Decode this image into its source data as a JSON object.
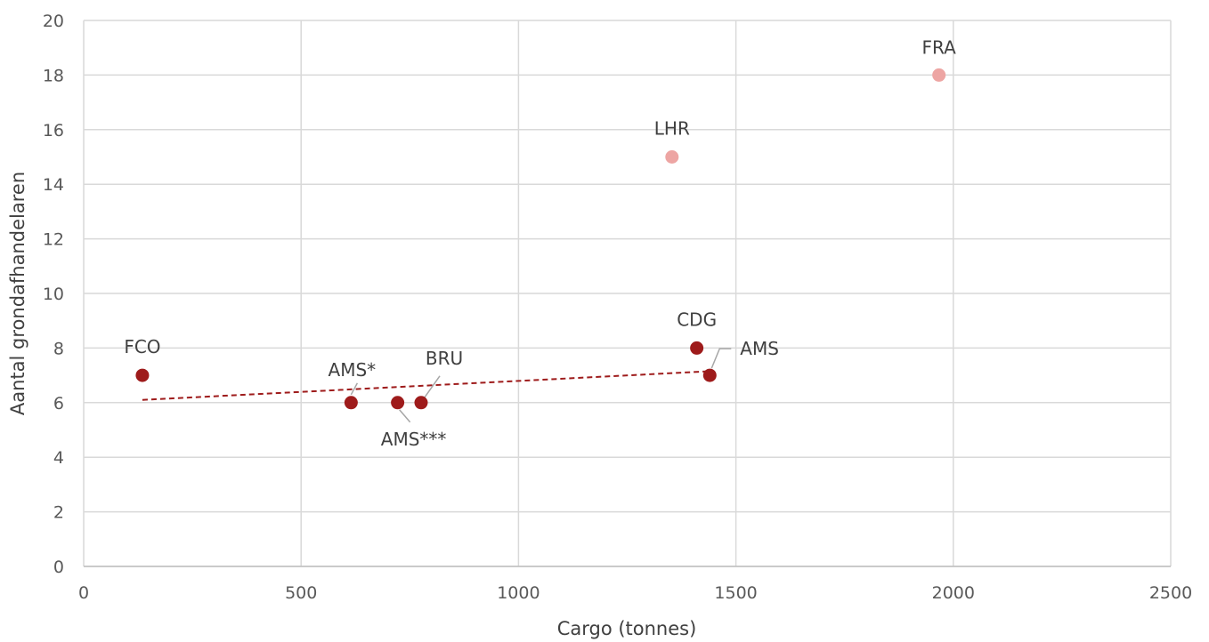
{
  "chart_data": {
    "type": "scatter",
    "xlabel": "Cargo (tonnes)",
    "ylabel": "Aantal grondafhandelaren",
    "xlim": [
      0,
      2500
    ],
    "ylim": [
      0,
      20
    ],
    "x_ticks": [
      0,
      500,
      1000,
      1500,
      2000,
      2500
    ],
    "y_ticks": [
      0,
      2,
      4,
      6,
      8,
      10,
      12,
      14,
      16,
      18,
      20
    ],
    "grid": true,
    "colors": {
      "main": "#9e1b1b",
      "outlier": "#eda5a3",
      "trendline": "#9e1b1b",
      "gridline": "#d9d9d9",
      "leader": "#a6a6a6"
    },
    "points": [
      {
        "label": "FCO",
        "x": 135,
        "y": 7,
        "group": "main"
      },
      {
        "label": "AMS*",
        "x": 615,
        "y": 6,
        "group": "main"
      },
      {
        "label": "AMS***",
        "x": 722,
        "y": 6,
        "group": "main"
      },
      {
        "label": "BRU",
        "x": 776,
        "y": 6,
        "group": "main"
      },
      {
        "label": "CDG",
        "x": 1410,
        "y": 8,
        "group": "main"
      },
      {
        "label": "AMS",
        "x": 1440,
        "y": 7,
        "group": "main"
      },
      {
        "label": "LHR",
        "x": 1353,
        "y": 15,
        "group": "outlier"
      },
      {
        "label": "FRA",
        "x": 1967,
        "y": 18,
        "group": "outlier"
      }
    ],
    "trendline": {
      "style": "dashed",
      "x": [
        135,
        1440
      ],
      "y": [
        6.1,
        7.15
      ]
    }
  }
}
